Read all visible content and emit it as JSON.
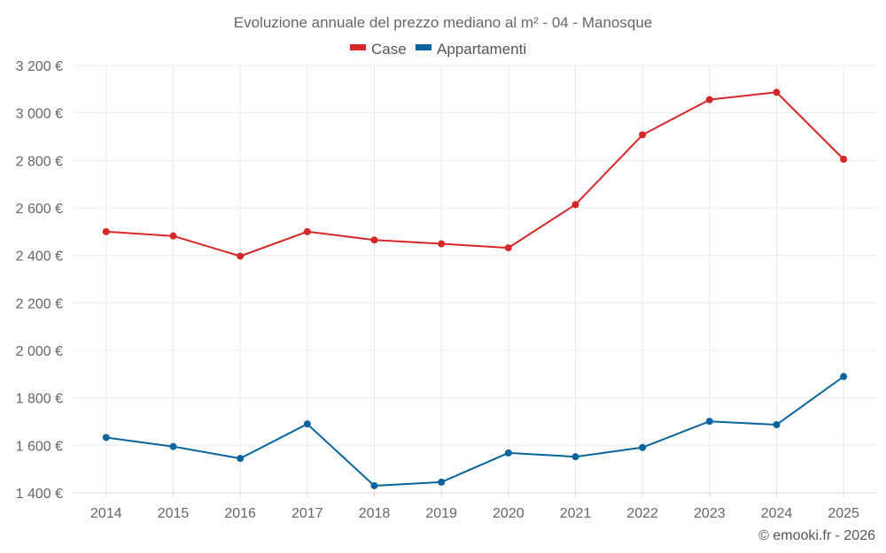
{
  "chart_data": {
    "type": "line",
    "title": "Evoluzione annuale del prezzo mediano al m² - 04 - Manosque",
    "categories": [
      "2014",
      "2015",
      "2016",
      "2017",
      "2018",
      "2019",
      "2020",
      "2021",
      "2022",
      "2023",
      "2024",
      "2025"
    ],
    "series": [
      {
        "name": "Case",
        "color": "#d62728",
        "values": [
          2500,
          2482,
          2397,
          2500,
          2465,
          2449,
          2432,
          2614,
          2908,
          3056,
          3087,
          2805
        ]
      },
      {
        "name": "Appartamenti",
        "color": "#08649e",
        "values": [
          1633,
          1595,
          1545,
          1690,
          1430,
          1445,
          1568,
          1552,
          1591,
          1701,
          1687,
          1890
        ]
      }
    ],
    "y_ticks": [
      1400,
      1600,
      1800,
      2000,
      2200,
      2400,
      2600,
      2800,
      3000,
      3200
    ],
    "y_tick_labels": [
      "1 400 €",
      "1 600 €",
      "1 800 €",
      "2 000 €",
      "2 200 €",
      "2 400 €",
      "2 600 €",
      "2 800 €",
      "3 000 €",
      "3 200 €"
    ],
    "ylim": [
      1400,
      3200
    ],
    "xlabel": "",
    "ylabel": "",
    "grid": true,
    "legend_position": "top-center",
    "credit": "© emooki.fr - 2026"
  }
}
